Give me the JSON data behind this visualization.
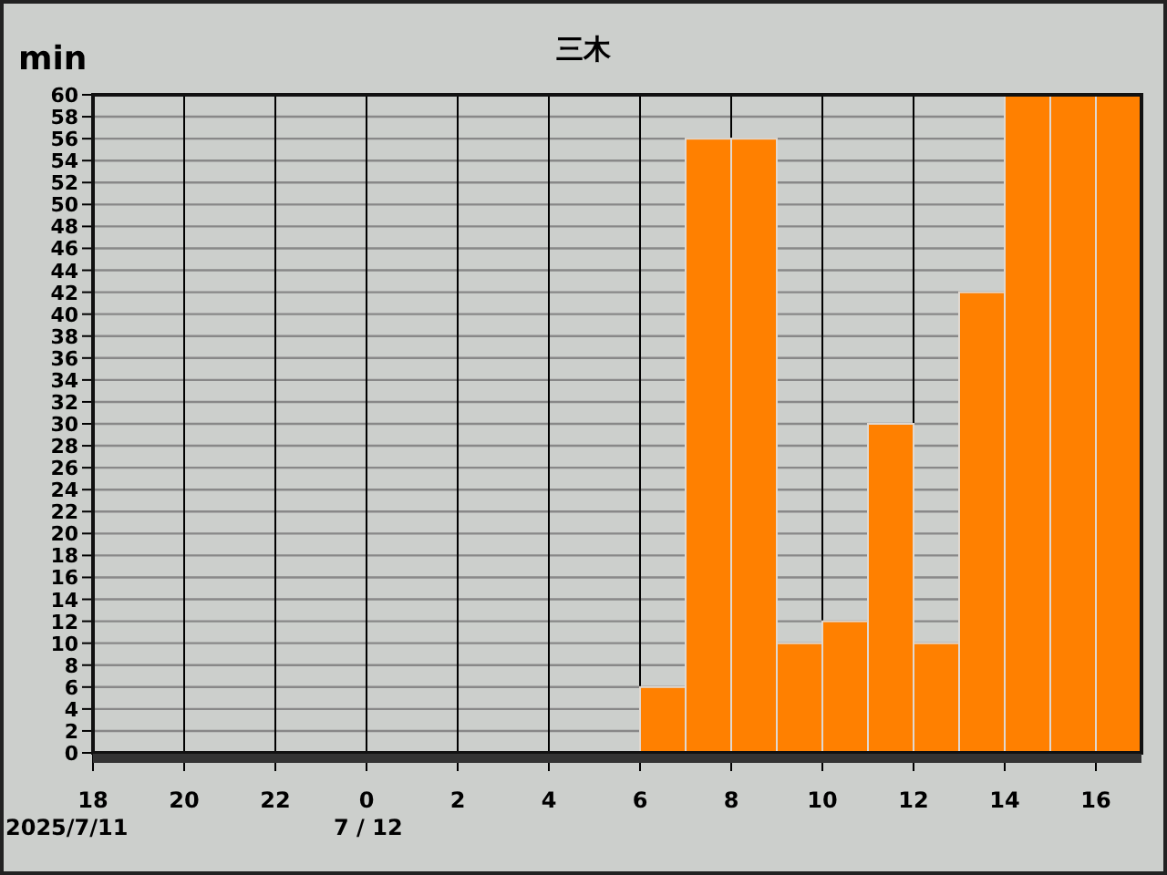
{
  "chart_data": {
    "type": "histogram",
    "title": "三木",
    "ylabel": "min",
    "annotations": [
      "2025/7/11",
      "7 / 12"
    ],
    "bins": [
      "2025-07-11T18:00",
      "2025-07-11T19:00",
      "2025-07-11T20:00",
      "2025-07-11T21:00",
      "2025-07-11T22:00",
      "2025-07-11T23:00",
      "2025-07-12T00:00",
      "2025-07-12T01:00",
      "2025-07-12T02:00",
      "2025-07-12T03:00",
      "2025-07-12T04:00",
      "2025-07-12T05:00",
      "2025-07-12T06:00",
      "2025-07-12T07:00",
      "2025-07-12T08:00",
      "2025-07-12T09:00",
      "2025-07-12T10:00",
      "2025-07-12T11:00",
      "2025-07-12T12:00",
      "2025-07-12T13:00",
      "2025-07-12T14:00",
      "2025-07-12T15:00",
      "2025-07-12T16:00",
      "2025-07-12T17:00"
    ],
    "values": [
      0,
      0,
      0,
      0,
      0,
      0,
      0,
      0,
      0,
      0,
      0,
      0,
      6,
      56,
      56,
      10,
      12,
      30,
      10,
      42,
      60,
      60,
      60
    ],
    "color": "#ff8000",
    "xlim": [
      "2025-07-11T18:00",
      "2025-07-12T17:00"
    ],
    "xticks": [
      {
        "value": "2025-07-11T18:00",
        "label": "18"
      },
      {
        "value": "2025-07-11T20:00",
        "label": "20"
      },
      {
        "value": "2025-07-11T22:00",
        "label": "22"
      },
      {
        "value": "2025-07-12T00:00",
        "label": "0"
      },
      {
        "value": "2025-07-12T02:00",
        "label": "2"
      },
      {
        "value": "2025-07-12T04:00",
        "label": "4"
      },
      {
        "value": "2025-07-12T06:00",
        "label": "6"
      },
      {
        "value": "2025-07-12T08:00",
        "label": "8"
      },
      {
        "value": "2025-07-12T10:00",
        "label": "10"
      },
      {
        "value": "2025-07-12T12:00",
        "label": "12"
      },
      {
        "value": "2025-07-12T14:00",
        "label": "14"
      },
      {
        "value": "2025-07-12T16:00",
        "label": "16"
      }
    ],
    "ylim": [
      0,
      60
    ],
    "yticks": [
      0,
      2,
      4,
      6,
      8,
      10,
      12,
      14,
      16,
      18,
      20,
      22,
      24,
      26,
      28,
      30,
      32,
      34,
      36,
      38,
      40,
      42,
      44,
      46,
      48,
      50,
      52,
      54,
      56,
      58,
      60
    ],
    "grid": true
  }
}
